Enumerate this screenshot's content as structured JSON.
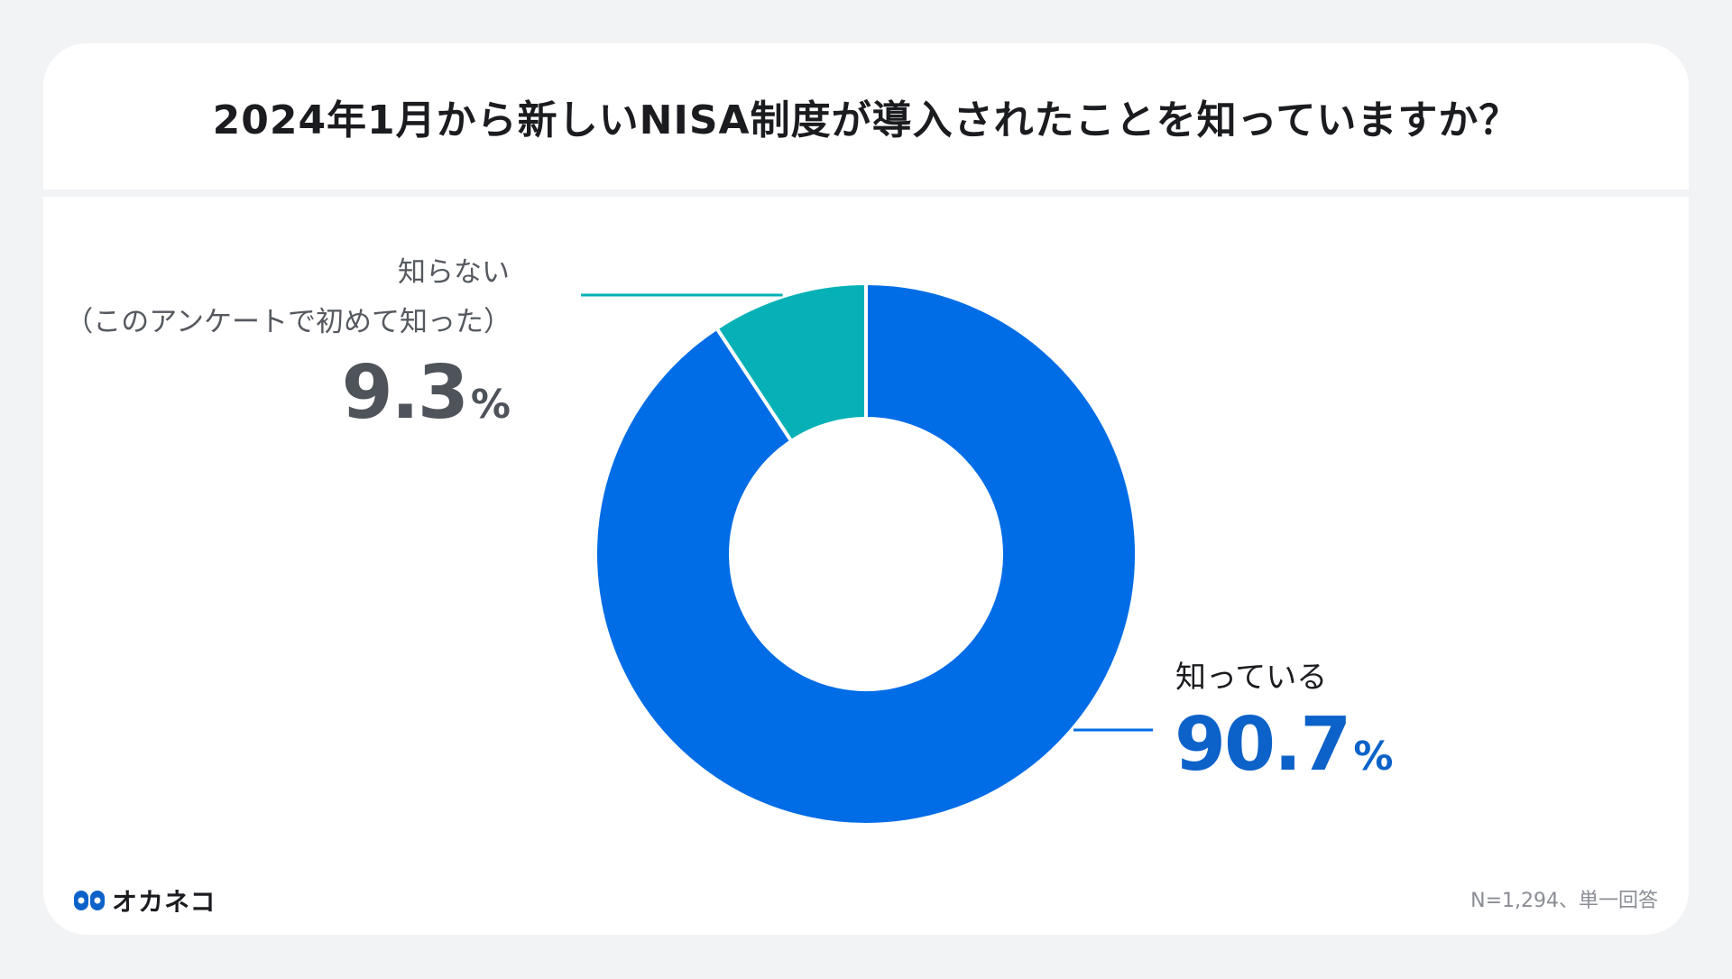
{
  "title": "2024年1月から新しいNISA制度が導入されたことを知っていますか？",
  "chart_data": {
    "type": "pie",
    "title": "2024年1月から新しいNISA制度が導入されたことを知っていますか？",
    "categories": [
      "知っている",
      "知らない（このアンケートで初めて知った）"
    ],
    "values": [
      90.7,
      9.3
    ],
    "unit": "%",
    "colors": [
      "#006ce6",
      "#05b1b6"
    ]
  },
  "labels": {
    "unknown_line1": "知らない",
    "unknown_line2": "（このアンケートで初めて知った）",
    "unknown_value": "9.3",
    "known_label": "知っている",
    "known_value": "90.7",
    "percent_sign": "%"
  },
  "footer": {
    "logo_text": "オカネコ",
    "logo_icon": "okaneko-logo-icon",
    "note": "N=1,294、単一回答"
  },
  "colors": {
    "known": "#006ce6",
    "unknown": "#05b1b6",
    "known_text": "#0c62c9",
    "background": "#f2f3f5"
  }
}
